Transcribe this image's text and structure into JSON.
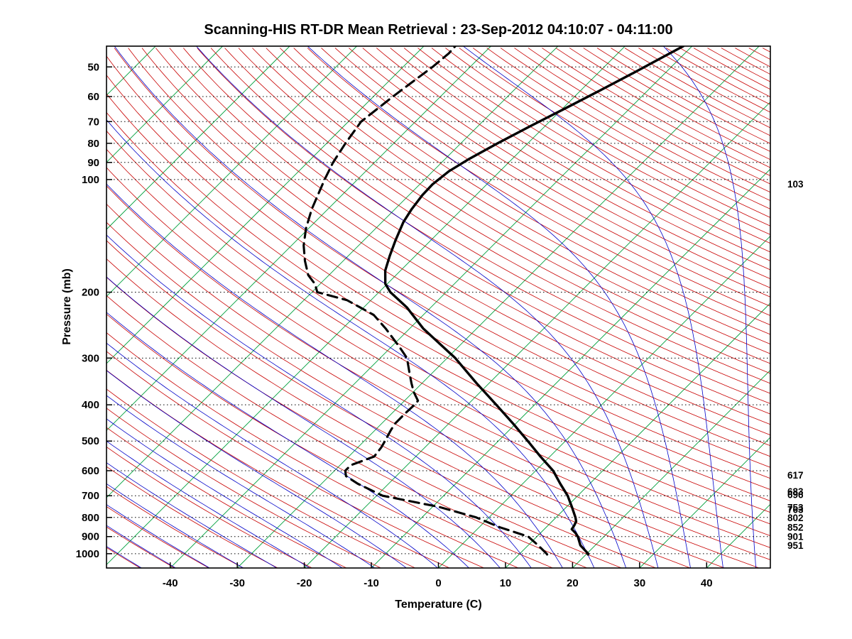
{
  "window": {
    "background": "#ffffff"
  },
  "chart_data": {
    "type": "line",
    "variant": "skew-t-log-p",
    "title": "Scanning-HIS RT-DR Mean Retrieval : 23-Sep-2012 04:10:07 - 04:11:00",
    "xlabel": "Temperature (C)",
    "ylabel": "Pressure (mb)",
    "x_ticks": [
      -40,
      -30,
      -20,
      -10,
      0,
      10,
      20,
      30,
      40
    ],
    "x_range_at_surface": [
      -49.5,
      49.5
    ],
    "pressure_ticks": [
      50,
      60,
      70,
      80,
      90,
      100,
      200,
      300,
      400,
      500,
      600,
      700,
      800,
      900,
      1000
    ],
    "pressure_range": [
      44,
      1092
    ],
    "skew_deg": 45,
    "grid": {
      "isobar_style": "dotted",
      "color": "#000000"
    },
    "right_level_labels": [
      {
        "pressure": 103,
        "label": "103"
      },
      {
        "pressure": 617,
        "label": "617"
      },
      {
        "pressure": 683,
        "label": "683"
      },
      {
        "pressure": 696,
        "label": "696"
      },
      {
        "pressure": 753,
        "label": "753"
      },
      {
        "pressure": 763,
        "label": "763"
      },
      {
        "pressure": 802,
        "label": "802"
      },
      {
        "pressure": 852,
        "label": "852"
      },
      {
        "pressure": 901,
        "label": "901"
      },
      {
        "pressure": 951,
        "label": "951"
      }
    ],
    "background_lines": {
      "isotherms": {
        "color": "#00A03C",
        "t_start": -130,
        "t_end": 50,
        "step": 10
      },
      "dry_adiabats": {
        "color": "#C80000",
        "theta_start": 218,
        "theta_end": 593,
        "step": 5
      },
      "moist_adiabats": {
        "color": "#0000C8",
        "t0_start": -55,
        "t0_end": 45,
        "step": 5
      }
    },
    "series": [
      {
        "name": "temperature",
        "color": "#000000",
        "style": "solid",
        "width": 3.4,
        "points_p_t": [
          [
            1005,
            20.3
          ],
          [
            1000,
            20.2
          ],
          [
            950,
            17.8
          ],
          [
            900,
            16.1
          ],
          [
            880,
            15.2
          ],
          [
            860,
            14.1
          ],
          [
            850,
            14.0
          ],
          [
            840,
            13.9
          ],
          [
            820,
            13.6
          ],
          [
            800,
            12.9
          ],
          [
            750,
            10.8
          ],
          [
            700,
            8.5
          ],
          [
            650,
            5.6
          ],
          [
            600,
            2.6
          ],
          [
            550,
            -1.4
          ],
          [
            500,
            -5.6
          ],
          [
            450,
            -10.3
          ],
          [
            400,
            -15.7
          ],
          [
            350,
            -21.9
          ],
          [
            300,
            -28.8
          ],
          [
            250,
            -38.0
          ],
          [
            220,
            -43.5
          ],
          [
            200,
            -48.3
          ],
          [
            190,
            -50.3
          ],
          [
            175,
            -52.3
          ],
          [
            160,
            -53.8
          ],
          [
            145,
            -55.3
          ],
          [
            130,
            -56.8
          ],
          [
            120,
            -57.5
          ],
          [
            110,
            -58.0
          ],
          [
            103,
            -58.1
          ],
          [
            95,
            -57.6
          ],
          [
            88,
            -56.4
          ],
          [
            80,
            -54.5
          ],
          [
            72,
            -52.2
          ],
          [
            65,
            -49.8
          ],
          [
            58,
            -47.2
          ],
          [
            52,
            -44.8
          ],
          [
            47,
            -42.7
          ],
          [
            44,
            -41.3
          ]
        ]
      },
      {
        "name": "dewpoint",
        "color": "#000000",
        "style": "dashed",
        "width": 3.1,
        "points_p_t": [
          [
            1005,
            14.2
          ],
          [
            1000,
            14.0
          ],
          [
            950,
            11.5
          ],
          [
            900,
            8.7
          ],
          [
            850,
            3.1
          ],
          [
            800,
            -1.9
          ],
          [
            750,
            -9.0
          ],
          [
            700,
            -19.1
          ],
          [
            650,
            -24.6
          ],
          [
            620,
            -27.5
          ],
          [
            600,
            -28.4
          ],
          [
            580,
            -28.4
          ],
          [
            550,
            -26.2
          ],
          [
            520,
            -26.5
          ],
          [
            500,
            -26.9
          ],
          [
            470,
            -27.6
          ],
          [
            450,
            -28.0
          ],
          [
            420,
            -28.0
          ],
          [
            400,
            -27.9
          ],
          [
            390,
            -28.0
          ],
          [
            370,
            -29.9
          ],
          [
            350,
            -31.6
          ],
          [
            330,
            -33.3
          ],
          [
            300,
            -36.0
          ],
          [
            280,
            -38.8
          ],
          [
            250,
            -43.6
          ],
          [
            230,
            -47.4
          ],
          [
            210,
            -53.6
          ],
          [
            200,
            -59.2
          ],
          [
            190,
            -60.8
          ],
          [
            180,
            -63.1
          ],
          [
            165,
            -65.7
          ],
          [
            150,
            -68.2
          ],
          [
            135,
            -70.4
          ],
          [
            120,
            -72.4
          ],
          [
            110,
            -73.6
          ],
          [
            100,
            -74.9
          ],
          [
            90,
            -76.2
          ],
          [
            80,
            -77.2
          ],
          [
            70,
            -78.1
          ],
          [
            60,
            -77.1
          ],
          [
            55,
            -76.4
          ],
          [
            50,
            -75.6
          ],
          [
            46,
            -75.2
          ],
          [
            44,
            -75.3
          ]
        ]
      }
    ]
  }
}
